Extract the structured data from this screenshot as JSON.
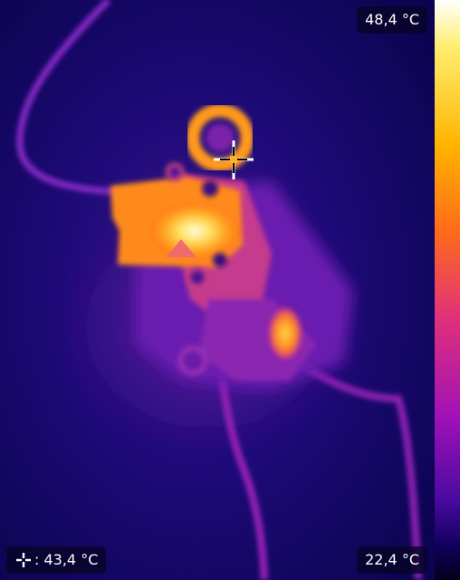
{
  "readouts": {
    "max_temp": "48,4 °C",
    "min_temp": "22,4 °C",
    "spot_temp": ": 43,4 °C"
  },
  "icons": {
    "spot_meter": "crosshair-plus-icon",
    "hot_marker": "triangle-icon",
    "reticle": "crosshair-icon"
  },
  "palette": {
    "background": "#0e0552",
    "scale_colors": [
      "#ffffff",
      "#ffee70",
      "#ffb400",
      "#ff6a1a",
      "#e0307a",
      "#a011b8",
      "#4a0aa0",
      "#120060",
      "#03001a"
    ],
    "hot_marker_color": "#f06b6b"
  }
}
